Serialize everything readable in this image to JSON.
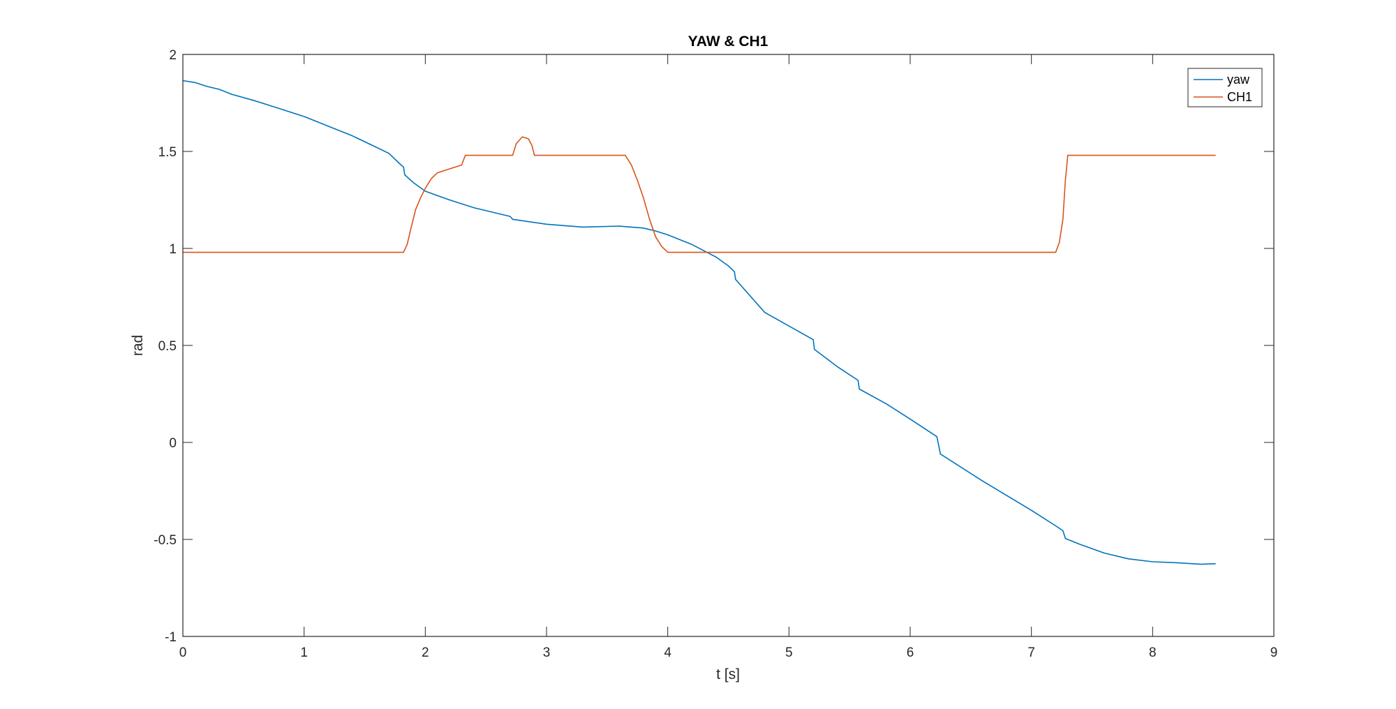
{
  "chart_data": {
    "type": "line",
    "title": "YAW & CH1",
    "xlabel": "t [s]",
    "ylabel": "rad",
    "xlim": [
      0,
      9
    ],
    "ylim": [
      -1,
      2
    ],
    "xticks": [
      "0",
      "1",
      "2",
      "3",
      "4",
      "5",
      "6",
      "7",
      "8",
      "9"
    ],
    "yticks": [
      "-1",
      "-0.5",
      "0",
      "0.5",
      "1",
      "1.5",
      "2"
    ],
    "grid": false,
    "legend_position": "top-right",
    "series": [
      {
        "name": "yaw",
        "color": "#0072BD",
        "points": [
          [
            0,
            1.865
          ],
          [
            0.1,
            1.855
          ],
          [
            0.2,
            1.835
          ],
          [
            0.3,
            1.82
          ],
          [
            0.4,
            1.795
          ],
          [
            0.6,
            1.76
          ],
          [
            0.8,
            1.72
          ],
          [
            1.0,
            1.68
          ],
          [
            1.1,
            1.655
          ],
          [
            1.2,
            1.63
          ],
          [
            1.4,
            1.58
          ],
          [
            1.6,
            1.52
          ],
          [
            1.7,
            1.49
          ],
          [
            1.8,
            1.43
          ],
          [
            1.82,
            1.42
          ],
          [
            1.83,
            1.38
          ],
          [
            1.9,
            1.34
          ],
          [
            2.0,
            1.295
          ],
          [
            2.2,
            1.25
          ],
          [
            2.4,
            1.21
          ],
          [
            2.6,
            1.18
          ],
          [
            2.7,
            1.165
          ],
          [
            2.72,
            1.15
          ],
          [
            3.0,
            1.125
          ],
          [
            3.3,
            1.11
          ],
          [
            3.6,
            1.115
          ],
          [
            3.8,
            1.105
          ],
          [
            3.9,
            1.09
          ],
          [
            4.0,
            1.07
          ],
          [
            4.2,
            1.02
          ],
          [
            4.4,
            0.955
          ],
          [
            4.5,
            0.91
          ],
          [
            4.55,
            0.88
          ],
          [
            4.56,
            0.84
          ],
          [
            4.8,
            0.67
          ],
          [
            5.0,
            0.6
          ],
          [
            5.2,
            0.53
          ],
          [
            5.21,
            0.48
          ],
          [
            5.4,
            0.39
          ],
          [
            5.57,
            0.32
          ],
          [
            5.58,
            0.275
          ],
          [
            5.8,
            0.2
          ],
          [
            6.0,
            0.12
          ],
          [
            6.22,
            0.03
          ],
          [
            6.25,
            -0.06
          ],
          [
            6.6,
            -0.2
          ],
          [
            7.0,
            -0.35
          ],
          [
            7.2,
            -0.43
          ],
          [
            7.26,
            -0.455
          ],
          [
            7.28,
            -0.495
          ],
          [
            7.4,
            -0.525
          ],
          [
            7.6,
            -0.57
          ],
          [
            7.8,
            -0.6
          ],
          [
            8.0,
            -0.615
          ],
          [
            8.2,
            -0.62
          ],
          [
            8.4,
            -0.628
          ],
          [
            8.52,
            -0.625
          ]
        ]
      },
      {
        "name": "CH1",
        "color": "#D95319",
        "points": [
          [
            0,
            0.98
          ],
          [
            1.82,
            0.98
          ],
          [
            1.85,
            1.02
          ],
          [
            1.88,
            1.1
          ],
          [
            1.92,
            1.2
          ],
          [
            1.96,
            1.26
          ],
          [
            2.0,
            1.31
          ],
          [
            2.05,
            1.36
          ],
          [
            2.1,
            1.39
          ],
          [
            2.2,
            1.41
          ],
          [
            2.3,
            1.43
          ],
          [
            2.33,
            1.48
          ],
          [
            2.72,
            1.48
          ],
          [
            2.75,
            1.54
          ],
          [
            2.8,
            1.575
          ],
          [
            2.85,
            1.565
          ],
          [
            2.88,
            1.53
          ],
          [
            2.9,
            1.48
          ],
          [
            3.65,
            1.48
          ],
          [
            3.7,
            1.43
          ],
          [
            3.75,
            1.35
          ],
          [
            3.8,
            1.26
          ],
          [
            3.85,
            1.15
          ],
          [
            3.9,
            1.06
          ],
          [
            3.95,
            1.01
          ],
          [
            4.0,
            0.98
          ],
          [
            7.2,
            0.98
          ],
          [
            7.23,
            1.03
          ],
          [
            7.26,
            1.15
          ],
          [
            7.28,
            1.35
          ],
          [
            7.3,
            1.48
          ],
          [
            8.52,
            1.48
          ]
        ]
      }
    ]
  }
}
